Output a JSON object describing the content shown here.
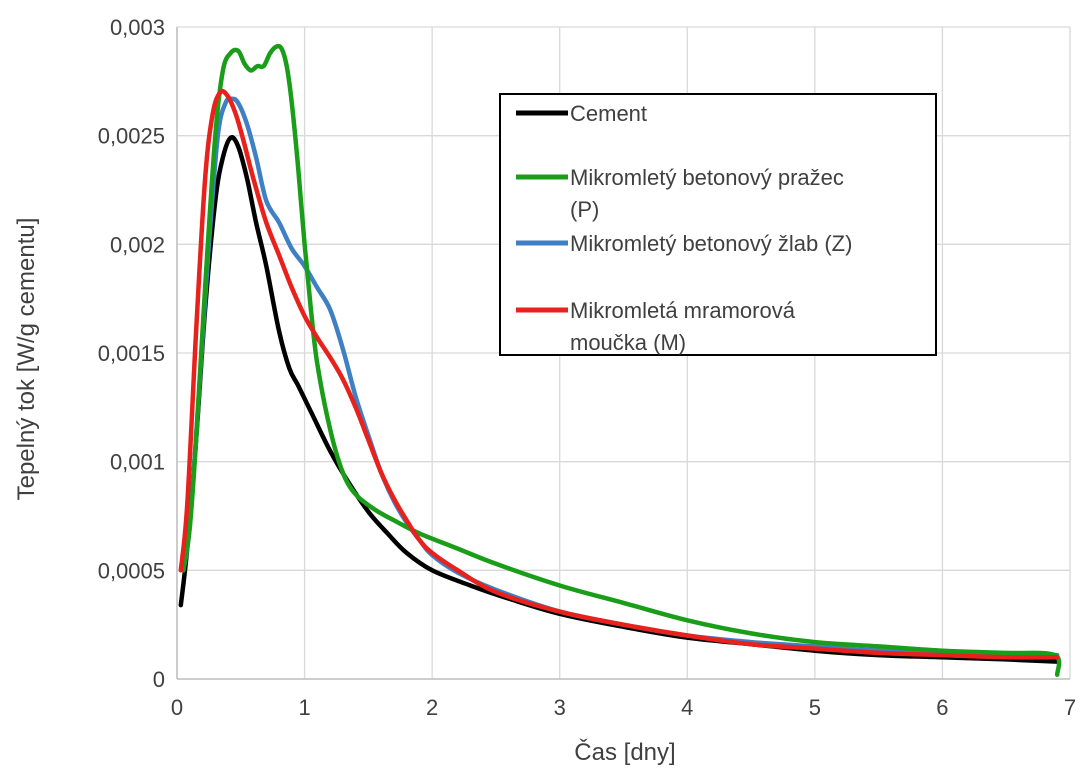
{
  "chart_data": {
    "type": "line",
    "xlabel": "Čas [dny]",
    "ylabel": "Tepelný tok [W/g cementu]",
    "xlim": [
      0,
      7
    ],
    "ylim": [
      0,
      0.003
    ],
    "x_ticks": [
      "0",
      "1",
      "2",
      "3",
      "4",
      "5",
      "6",
      "7"
    ],
    "y_ticks": [
      "0",
      "0,0005",
      "0,001",
      "0,0015",
      "0,002",
      "0,0025",
      "0,003"
    ],
    "grid": true,
    "legend_position": "top-right",
    "series": [
      {
        "name": "Cement",
        "color": "#000000",
        "points": [
          [
            0.03,
            0.00034
          ],
          [
            0.08,
            0.0006
          ],
          [
            0.15,
            0.0011
          ],
          [
            0.22,
            0.0017
          ],
          [
            0.3,
            0.0022
          ],
          [
            0.36,
            0.0024
          ],
          [
            0.42,
            0.00249
          ],
          [
            0.48,
            0.00245
          ],
          [
            0.55,
            0.0023
          ],
          [
            0.62,
            0.0021
          ],
          [
            0.7,
            0.0019
          ],
          [
            0.8,
            0.0016
          ],
          [
            0.88,
            0.00143
          ],
          [
            0.95,
            0.00135
          ],
          [
            1.05,
            0.00123
          ],
          [
            1.2,
            0.00105
          ],
          [
            1.35,
            0.0009
          ],
          [
            1.5,
            0.00077
          ],
          [
            1.65,
            0.00067
          ],
          [
            1.8,
            0.00058
          ],
          [
            2.0,
            0.0005
          ],
          [
            2.3,
            0.00043
          ],
          [
            2.6,
            0.00037
          ],
          [
            3.0,
            0.0003
          ],
          [
            3.5,
            0.00024
          ],
          [
            4.0,
            0.00019
          ],
          [
            4.5,
            0.00016
          ],
          [
            5.0,
            0.00013
          ],
          [
            5.5,
            0.00011
          ],
          [
            6.0,
            0.0001
          ],
          [
            6.5,
            9e-05
          ],
          [
            6.9,
            8e-05
          ]
        ]
      },
      {
        "name": "Mikromletý betonový pražec (P)",
        "color": "#1a9e1a",
        "points": [
          [
            0.05,
            0.0005
          ],
          [
            0.1,
            0.0007
          ],
          [
            0.15,
            0.0011
          ],
          [
            0.22,
            0.0018
          ],
          [
            0.3,
            0.0025
          ],
          [
            0.36,
            0.0028
          ],
          [
            0.42,
            0.00288
          ],
          [
            0.48,
            0.00289
          ],
          [
            0.53,
            0.00283
          ],
          [
            0.58,
            0.0028
          ],
          [
            0.63,
            0.00282
          ],
          [
            0.68,
            0.00282
          ],
          [
            0.73,
            0.00288
          ],
          [
            0.78,
            0.00291
          ],
          [
            0.82,
            0.0029
          ],
          [
            0.86,
            0.00282
          ],
          [
            0.9,
            0.00265
          ],
          [
            0.95,
            0.00235
          ],
          [
            1.0,
            0.002
          ],
          [
            1.05,
            0.0017
          ],
          [
            1.1,
            0.00145
          ],
          [
            1.2,
            0.00115
          ],
          [
            1.3,
            0.00095
          ],
          [
            1.4,
            0.00085
          ],
          [
            1.55,
            0.00078
          ],
          [
            1.7,
            0.00073
          ],
          [
            1.9,
            0.00067
          ],
          [
            2.2,
            0.0006
          ],
          [
            2.5,
            0.00053
          ],
          [
            3.0,
            0.00043
          ],
          [
            3.5,
            0.00035
          ],
          [
            4.0,
            0.00027
          ],
          [
            4.5,
            0.00021
          ],
          [
            5.0,
            0.00017
          ],
          [
            5.5,
            0.00015
          ],
          [
            6.0,
            0.00013
          ],
          [
            6.5,
            0.00012
          ],
          [
            6.88,
            0.00011
          ],
          [
            6.9,
            2e-05
          ]
        ]
      },
      {
        "name": "Mikromletý betonový žlab (Z)",
        "color": "#3f7fc4",
        "points": [
          [
            0.05,
            0.0005
          ],
          [
            0.1,
            0.0007
          ],
          [
            0.17,
            0.0013
          ],
          [
            0.25,
            0.002
          ],
          [
            0.32,
            0.0025
          ],
          [
            0.38,
            0.00265
          ],
          [
            0.43,
            0.00267
          ],
          [
            0.48,
            0.00265
          ],
          [
            0.55,
            0.00255
          ],
          [
            0.62,
            0.0024
          ],
          [
            0.7,
            0.0022
          ],
          [
            0.8,
            0.0021
          ],
          [
            0.9,
            0.00198
          ],
          [
            1.0,
            0.0019
          ],
          [
            1.1,
            0.0018
          ],
          [
            1.2,
            0.0017
          ],
          [
            1.3,
            0.00152
          ],
          [
            1.4,
            0.0013
          ],
          [
            1.5,
            0.00112
          ],
          [
            1.6,
            0.00095
          ],
          [
            1.7,
            0.00082
          ],
          [
            1.8,
            0.00072
          ],
          [
            1.9,
            0.00064
          ],
          [
            2.0,
            0.00057
          ],
          [
            2.2,
            0.00049
          ],
          [
            2.5,
            0.00041
          ],
          [
            3.0,
            0.00031
          ],
          [
            3.5,
            0.00025
          ],
          [
            4.0,
            0.0002
          ],
          [
            4.5,
            0.00017
          ],
          [
            5.0,
            0.00015
          ],
          [
            5.5,
            0.00013
          ],
          [
            6.0,
            0.00012
          ],
          [
            6.5,
            0.00011
          ],
          [
            6.9,
            0.00011
          ]
        ]
      },
      {
        "name": "Mikromletá mramorová moučka (M)",
        "color": "#e8211c",
        "points": [
          [
            0.03,
            0.0005
          ],
          [
            0.08,
            0.0008
          ],
          [
            0.15,
            0.0016
          ],
          [
            0.22,
            0.0023
          ],
          [
            0.28,
            0.0026
          ],
          [
            0.34,
            0.0027
          ],
          [
            0.4,
            0.00268
          ],
          [
            0.46,
            0.0026
          ],
          [
            0.52,
            0.00248
          ],
          [
            0.6,
            0.0023
          ],
          [
            0.7,
            0.0021
          ],
          [
            0.8,
            0.00195
          ],
          [
            0.9,
            0.0018
          ],
          [
            1.0,
            0.00167
          ],
          [
            1.1,
            0.00157
          ],
          [
            1.2,
            0.00148
          ],
          [
            1.3,
            0.00138
          ],
          [
            1.4,
            0.00125
          ],
          [
            1.5,
            0.0011
          ],
          [
            1.6,
            0.00095
          ],
          [
            1.7,
            0.00083
          ],
          [
            1.8,
            0.00073
          ],
          [
            1.9,
            0.00064
          ],
          [
            2.0,
            0.00058
          ],
          [
            2.2,
            0.0005
          ],
          [
            2.5,
            0.0004
          ],
          [
            3.0,
            0.00031
          ],
          [
            3.5,
            0.00025
          ],
          [
            4.0,
            0.0002
          ],
          [
            4.5,
            0.00016
          ],
          [
            5.0,
            0.00014
          ],
          [
            5.5,
            0.00012
          ],
          [
            6.0,
            0.00011
          ],
          [
            6.5,
            0.0001
          ],
          [
            6.9,
            0.0001
          ]
        ]
      }
    ],
    "legend": [
      {
        "lines": [
          "Cement"
        ],
        "color": "#000000"
      },
      {
        "lines": [
          "Mikromletý betonový pražec",
          "(P)"
        ],
        "color": "#1a9e1a"
      },
      {
        "lines": [
          "Mikromletý betonový žlab (Z)"
        ],
        "color": "#3f7fc4"
      },
      {
        "lines": [
          "Mikromletá mramorová",
          "moučka (M)"
        ],
        "color": "#e8211c"
      }
    ]
  }
}
